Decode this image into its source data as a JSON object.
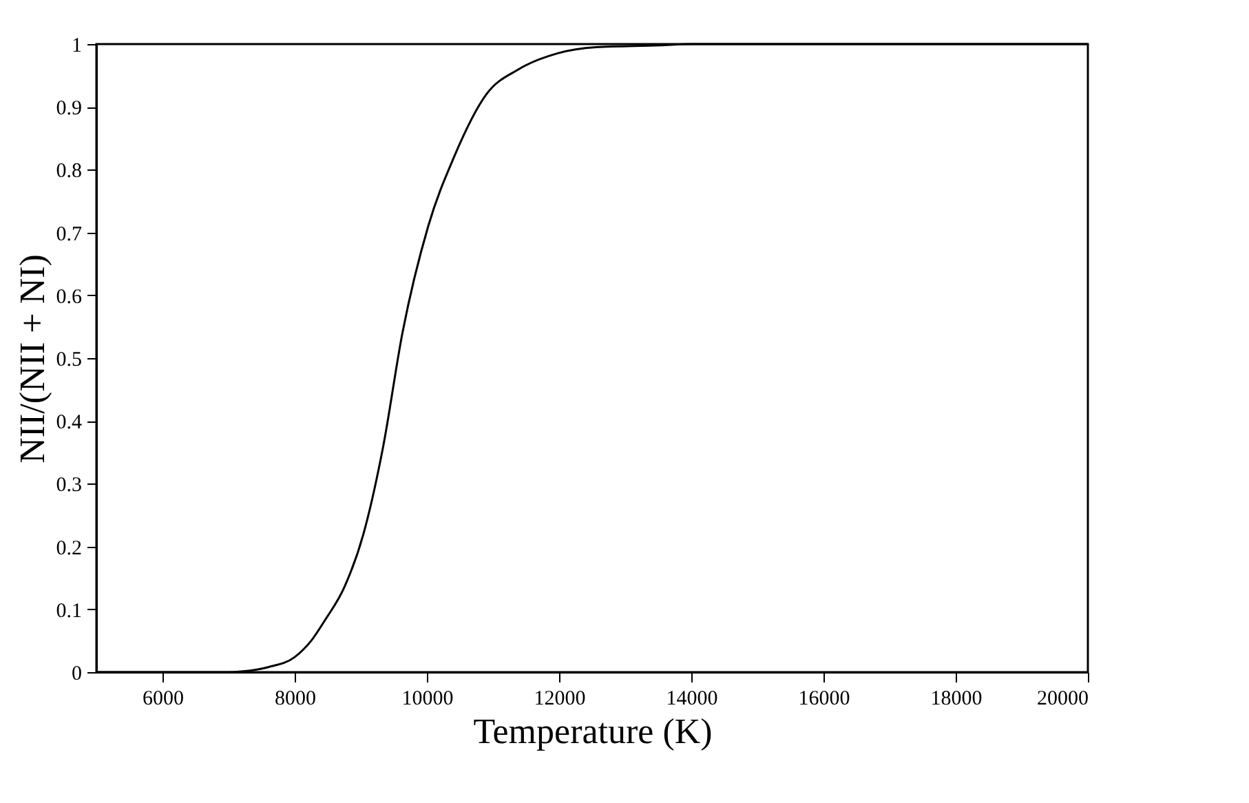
{
  "chart_data": {
    "type": "line",
    "xlabel": "Temperature (K)",
    "ylabel": "NII/(NII + NI)",
    "x": [
      5000,
      6000,
      7000,
      7190,
      7600,
      8000,
      8250,
      8460,
      8750,
      9040,
      9340,
      9630,
      10020,
      10410,
      10900,
      11390,
      11970,
      12560,
      13530,
      14000,
      16000,
      20000
    ],
    "series": [
      {
        "color": "#000000",
        "values": [
          0,
          0,
          0,
          0.001,
          0.008,
          0.024,
          0.05,
          0.083,
          0.135,
          0.22,
          0.36,
          0.54,
          0.71,
          0.82,
          0.92,
          0.96,
          0.985,
          0.995,
          0.998,
          1,
          1,
          1
        ]
      }
    ],
    "xlim": [
      5000,
      20000
    ],
    "xticks": [
      6000,
      8000,
      10000,
      12000,
      14000,
      16000,
      18000,
      20000
    ],
    "ylim": [
      0,
      1
    ],
    "yticks": [
      0,
      0.1,
      0.2,
      0.3,
      0.4,
      0.5,
      0.6,
      0.7,
      0.8,
      0.9,
      {
        "value": 1,
        "label": "1"
      }
    ],
    "grid": false,
    "marker": "none",
    "line_style": "solid"
  }
}
